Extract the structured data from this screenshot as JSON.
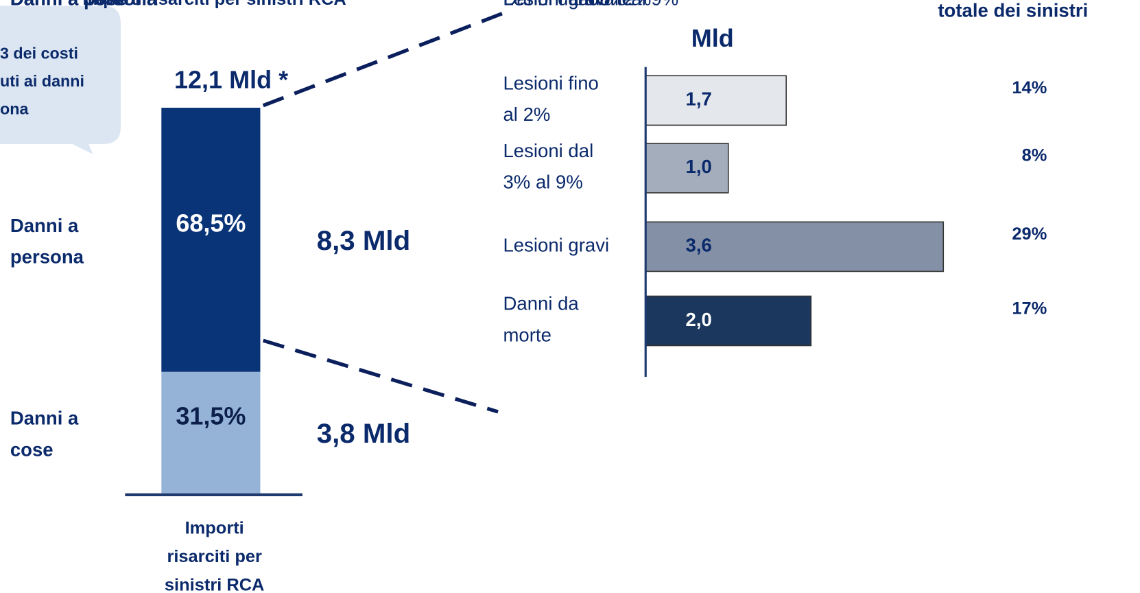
{
  "callout": {
    "lines": [
      "3 dei costi",
      "uti ai danni",
      "ona"
    ]
  },
  "chart_data": [
    {
      "type": "stacked_bar",
      "categories": [
        "Importi risarciti per sinistri RCA"
      ],
      "series": [
        {
          "name": "Danni a persona",
          "color": "#0a3478",
          "values": [
            68.5
          ],
          "value_labels": [
            "68,5%"
          ],
          "amount": "8,3 Mld"
        },
        {
          "name": "Danni a cose",
          "color": "#95b3d7",
          "values": [
            31.5
          ],
          "value_labels": [
            "31,5%"
          ],
          "amount": "3,8 Mld"
        }
      ],
      "total": "12,1 Mld *",
      "ylim": [
        0,
        100
      ]
    },
    {
      "type": "hbar",
      "title": "Mld",
      "share_title": "totale dei sinistri",
      "categories": [
        "Lesioni fino al 2%",
        "Lesioni dal 3% al 9%",
        "Lesioni gravi",
        "Danni da morte"
      ],
      "values": [
        1.7,
        1.0,
        3.6,
        2.0
      ],
      "value_labels": [
        "1,7",
        "1,0",
        "3,6",
        "2,0"
      ],
      "shares": [
        "14%",
        "8%",
        "29%",
        "17%"
      ],
      "colors": [
        "#e4e7ec",
        "#a3adbc",
        "#8390a5",
        "#1b375e"
      ],
      "xlim": [
        0,
        4
      ]
    }
  ]
}
